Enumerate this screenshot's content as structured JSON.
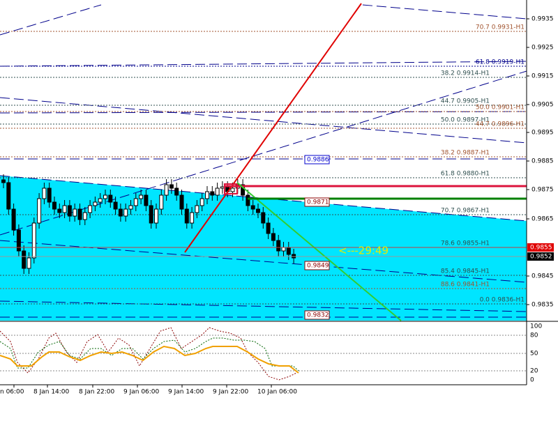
{
  "price_axis": [
    "0.9935",
    "0.9925",
    "0.9915",
    "0.9905",
    "0.9895",
    "0.9885",
    "0.9875",
    "0.9865",
    "0.9845",
    "0.9835"
  ],
  "alert_price": "0.9855",
  "current_price": "0.9852",
  "fib_levels": [
    "70.7 0.9931-H1",
    "61.8 0.9919-H1",
    "38.2 0.9914-H1",
    "44.7 0.9905-H1",
    "50.0 0.9901-H1",
    "50.0 0.9897-H1",
    "44.7 0.9896-H1",
    "38.2 0.9887-H1",
    "61.8 0.9880-H1",
    "70.7 0.9867-H1",
    "78.6 0.9855-H1",
    "85.4 0.9845-H1",
    "88.6 0.9841-H1",
    "0.0 0.9836-H1"
  ],
  "price_boxes": [
    "0.9886",
    "0.9871",
    "0.9849",
    "0.9832"
  ],
  "countdown": "<---29:49",
  "indicator_axis": [
    "100",
    "80",
    "50",
    "20",
    "0"
  ],
  "time_axis": [
    "n 06:00",
    "8 Jan 14:00",
    "8 Jan 22:00",
    "9 Jan 06:00",
    "9 Jan 14:00",
    "9 Jan 22:00",
    "10 Jan 06:00"
  ]
}
